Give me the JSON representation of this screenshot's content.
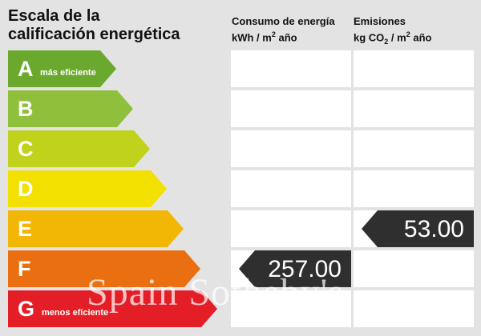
{
  "title_line1": "Escala de la",
  "title_line2": "calificación energética",
  "col1": {
    "line1": "Consumo de energía",
    "line2_prefix": "kWh / m",
    "line2_sup": "2",
    "line2_suffix": " año"
  },
  "col2": {
    "line1": "Emisiones",
    "line2_prefix": "kg CO",
    "line2_sub": "2",
    "line2_mid": " / m",
    "line2_sup": "2",
    "line2_suffix": " año"
  },
  "ratings": [
    {
      "letter": "A",
      "text": "más eficiente",
      "color": "#6aa92d"
    },
    {
      "letter": "B",
      "text": "",
      "color": "#8ec03b"
    },
    {
      "letter": "C",
      "text": "",
      "color": "#c0d21b"
    },
    {
      "letter": "D",
      "text": "",
      "color": "#f1e000"
    },
    {
      "letter": "E",
      "text": "",
      "color": "#f2b605"
    },
    {
      "letter": "F",
      "text": "",
      "color": "#ea6f11"
    },
    {
      "letter": "G",
      "text": "menos eficiente",
      "color": "#e41e26"
    }
  ],
  "consumption": {
    "rating": "F",
    "value": "257.00"
  },
  "emissions": {
    "rating": "E",
    "value": "53.00"
  },
  "badge_color": "#2f2f2f",
  "watermark": "Spain   Sotheby's"
}
